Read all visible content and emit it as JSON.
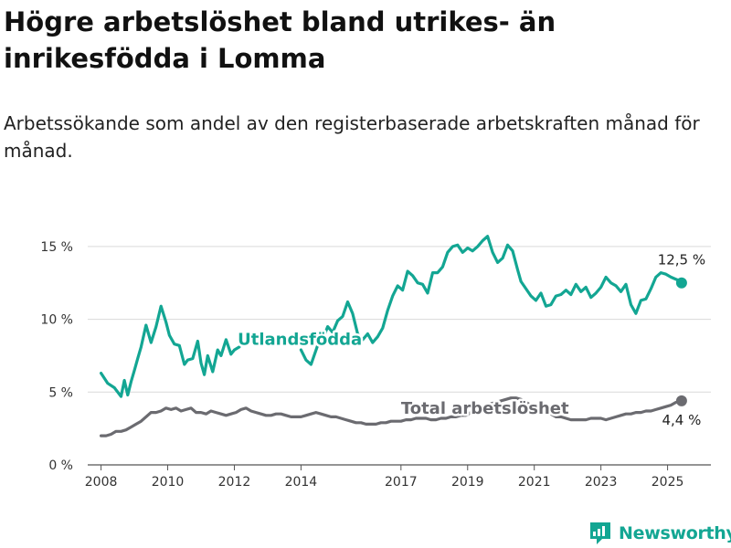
{
  "title": "Högre arbetslöshet bland utrikes- än inrikesfödda i Lomma",
  "subtitle": "Arbetssökande som andel av den registerbaserade arbetskraften månad för månad.",
  "brand": {
    "name": "Newsworthy",
    "icon": "newsworthy-logo-icon",
    "color": "#13a693"
  },
  "chart_data": {
    "type": "line",
    "x_unit": "year",
    "xlim": [
      2007.6,
      2026.3
    ],
    "ylim": [
      0,
      17
    ],
    "y_ticks": [
      0,
      5,
      10,
      15
    ],
    "y_tick_labels": [
      "0 %",
      "5 %",
      "10 %",
      "15 %"
    ],
    "x_ticks": [
      2008,
      2010,
      2012,
      2014,
      2017,
      2019,
      2021,
      2023,
      2025
    ],
    "x_tick_labels": [
      "2008",
      "2010",
      "2012",
      "2014",
      "2017",
      "2019",
      "2021",
      "2023",
      "2025"
    ],
    "grid": "horizontal",
    "legend": "none",
    "series": [
      {
        "name": "Utlandsfödda",
        "color": "#13a693",
        "end_label": "12,5 %",
        "x": [
          2008.0,
          2008.2,
          2008.4,
          2008.6,
          2008.7,
          2008.8,
          2008.9,
          2009.0,
          2009.1,
          2009.2,
          2009.35,
          2009.5,
          2009.65,
          2009.8,
          2009.95,
          2010.05,
          2010.2,
          2010.35,
          2010.5,
          2010.6,
          2010.75,
          2010.9,
          2011.0,
          2011.1,
          2011.2,
          2011.35,
          2011.5,
          2011.6,
          2011.75,
          2011.9,
          2012.0,
          2012.15,
          2014.0,
          2014.15,
          2014.3,
          2014.5,
          2014.65,
          2014.8,
          2014.95,
          2015.1,
          2015.25,
          2015.4,
          2015.55,
          2015.7,
          2015.85,
          2016.0,
          2016.15,
          2016.3,
          2016.45,
          2016.6,
          2016.75,
          2016.9,
          2017.05,
          2017.2,
          2017.35,
          2017.5,
          2017.65,
          2017.8,
          2017.95,
          2018.1,
          2018.25,
          2018.4,
          2018.55,
          2018.7,
          2018.85,
          2019.0,
          2019.15,
          2019.3,
          2019.45,
          2019.6,
          2019.75,
          2019.9,
          2020.05,
          2020.2,
          2020.35,
          2020.5,
          2020.6,
          2020.75,
          2020.9,
          2021.05,
          2021.2,
          2021.35,
          2021.5,
          2021.65,
          2021.8,
          2021.95,
          2022.1,
          2022.25,
          2022.4,
          2022.55,
          2022.7,
          2022.85,
          2023.0,
          2023.15,
          2023.3,
          2023.45,
          2023.6,
          2023.75,
          2023.9,
          2024.05,
          2024.2,
          2024.35,
          2024.5,
          2024.65,
          2024.8,
          2024.95,
          2025.1,
          2025.2,
          2025.3,
          2025.42
        ],
        "y": [
          6.3,
          5.6,
          5.3,
          4.7,
          5.8,
          4.8,
          5.7,
          6.5,
          7.3,
          8.1,
          9.6,
          8.4,
          9.5,
          10.9,
          9.8,
          8.9,
          8.3,
          8.2,
          6.9,
          7.2,
          7.3,
          8.5,
          7.0,
          6.2,
          7.5,
          6.4,
          7.9,
          7.5,
          8.6,
          7.6,
          7.9,
          8.1,
          7.9,
          7.2,
          6.9,
          8.2,
          8.6,
          9.5,
          9.1,
          9.9,
          10.2,
          11.2,
          10.4,
          9.0,
          8.6,
          9.0,
          8.4,
          8.8,
          9.4,
          10.6,
          11.6,
          12.3,
          12.0,
          13.3,
          13.0,
          12.5,
          12.4,
          11.8,
          13.2,
          13.2,
          13.6,
          14.6,
          15.0,
          15.1,
          14.6,
          14.9,
          14.7,
          15.0,
          15.4,
          15.7,
          14.6,
          13.9,
          14.2,
          15.1,
          14.7,
          13.4,
          12.6,
          12.1,
          11.6,
          11.3,
          11.8,
          10.9,
          11.0,
          11.6,
          11.7,
          12.0,
          11.7,
          12.4,
          11.9,
          12.2,
          11.5,
          11.8,
          12.2,
          12.9,
          12.5,
          12.3,
          11.9,
          12.4,
          11.0,
          10.4,
          11.3,
          11.4,
          12.1,
          12.9,
          13.2,
          13.1,
          12.9,
          12.8,
          12.7,
          12.5
        ]
      },
      {
        "name": "Total arbetslöshet",
        "color": "#6b6b70",
        "end_label": "4,4 %",
        "x": [
          2008.0,
          2008.15,
          2008.3,
          2008.45,
          2008.6,
          2008.75,
          2008.9,
          2009.05,
          2009.2,
          2009.35,
          2009.5,
          2009.65,
          2009.8,
          2009.95,
          2010.1,
          2010.25,
          2010.4,
          2010.55,
          2010.7,
          2010.85,
          2011.0,
          2011.15,
          2011.3,
          2011.45,
          2011.6,
          2011.75,
          2011.9,
          2012.05,
          2012.2,
          2012.35,
          2012.5,
          2012.65,
          2012.8,
          2012.95,
          2013.1,
          2013.25,
          2013.4,
          2013.55,
          2013.7,
          2013.85,
          2014.0,
          2014.15,
          2014.3,
          2014.45,
          2014.6,
          2014.75,
          2014.9,
          2015.05,
          2015.2,
          2015.35,
          2015.5,
          2015.65,
          2015.8,
          2015.95,
          2016.1,
          2016.25,
          2016.4,
          2016.55,
          2016.7,
          2016.85,
          2017.0,
          2017.15,
          2017.3,
          2017.45,
          2017.6,
          2017.75,
          2017.9,
          2018.05,
          2018.2,
          2018.35,
          2018.5,
          2018.65,
          2018.8,
          2018.95,
          2019.1,
          2019.25,
          2019.4,
          2019.55,
          2019.7,
          2019.85,
          2020.0,
          2020.15,
          2020.3,
          2020.45,
          2020.6,
          2020.75,
          2020.9,
          2021.05,
          2021.2,
          2021.35,
          2021.5,
          2021.65,
          2021.8,
          2021.95,
          2022.1,
          2022.25,
          2022.4,
          2022.55,
          2022.7,
          2022.85,
          2023.0,
          2023.15,
          2023.3,
          2023.45,
          2023.6,
          2023.75,
          2023.9,
          2024.05,
          2024.2,
          2024.35,
          2024.5,
          2024.65,
          2024.8,
          2024.95,
          2025.1,
          2025.25,
          2025.42
        ],
        "y": [
          2.0,
          2.0,
          2.1,
          2.3,
          2.3,
          2.4,
          2.6,
          2.8,
          3.0,
          3.3,
          3.6,
          3.6,
          3.7,
          3.9,
          3.8,
          3.9,
          3.7,
          3.8,
          3.9,
          3.6,
          3.6,
          3.5,
          3.7,
          3.6,
          3.5,
          3.4,
          3.5,
          3.6,
          3.8,
          3.9,
          3.7,
          3.6,
          3.5,
          3.4,
          3.4,
          3.5,
          3.5,
          3.4,
          3.3,
          3.3,
          3.3,
          3.4,
          3.5,
          3.6,
          3.5,
          3.4,
          3.3,
          3.3,
          3.2,
          3.1,
          3.0,
          2.9,
          2.9,
          2.8,
          2.8,
          2.8,
          2.9,
          2.9,
          3.0,
          3.0,
          3.0,
          3.1,
          3.1,
          3.2,
          3.2,
          3.2,
          3.1,
          3.1,
          3.2,
          3.2,
          3.3,
          3.3,
          3.4,
          3.4,
          3.6,
          3.7,
          3.9,
          4.0,
          4.2,
          4.3,
          4.4,
          4.5,
          4.6,
          4.6,
          4.5,
          4.3,
          4.1,
          3.9,
          3.8,
          3.6,
          3.5,
          3.3,
          3.3,
          3.2,
          3.1,
          3.1,
          3.1,
          3.1,
          3.2,
          3.2,
          3.2,
          3.1,
          3.2,
          3.3,
          3.4,
          3.5,
          3.5,
          3.6,
          3.6,
          3.7,
          3.7,
          3.8,
          3.9,
          4.0,
          4.1,
          4.3,
          4.4
        ]
      }
    ],
    "gaps": [
      [
        2012.2,
        2013.95
      ]
    ],
    "annotations": [
      {
        "text": "Utlandsfödda",
        "series": 0
      },
      {
        "text": "Total arbetslöshet",
        "series": 1
      }
    ]
  }
}
